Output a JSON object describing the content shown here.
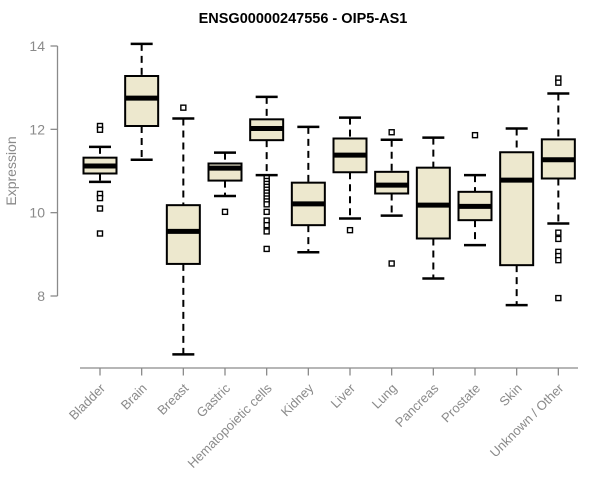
{
  "chart_data": {
    "type": "boxplot",
    "title": "ENSG00000247556 - OIP5-AS1",
    "ylabel": "Expression",
    "xlabel": "",
    "yticks": [
      8,
      10,
      12,
      14
    ],
    "axis_value_range": [
      8,
      14
    ],
    "grid": false,
    "legend": "none",
    "box_fill": "#EDE8CE",
    "box_stroke": "#000000",
    "axis_color": "#8A8A8A",
    "title_color": "#000000",
    "background": "#FFFFFF",
    "series": [
      {
        "name": "Bladder",
        "whisker_low": 10.74,
        "q1": 10.94,
        "median": 11.12,
        "q3": 11.32,
        "whisker_high": 11.58,
        "outliers": [
          12.08,
          11.99,
          10.45,
          10.35,
          10.1,
          9.5
        ]
      },
      {
        "name": "Brain",
        "whisker_low": 11.27,
        "q1": 12.08,
        "median": 12.75,
        "q3": 13.28,
        "whisker_high": 14.05,
        "outliers": []
      },
      {
        "name": "Breast",
        "whisker_low": 6.6,
        "q1": 8.77,
        "median": 9.55,
        "q3": 10.18,
        "whisker_high": 12.26,
        "outliers": [
          12.52
        ]
      },
      {
        "name": "Gastric",
        "whisker_low": 10.4,
        "q1": 10.77,
        "median": 11.07,
        "q3": 11.18,
        "whisker_high": 11.44,
        "outliers": [
          10.02
        ]
      },
      {
        "name": "Hematopoietic cells",
        "whisker_low": 10.9,
        "q1": 11.74,
        "median": 12.02,
        "q3": 12.24,
        "whisker_high": 12.78,
        "outliers": [
          10.83,
          10.76,
          10.69,
          10.62,
          10.55,
          10.48,
          10.41,
          10.34,
          10.27,
          10.2,
          10.02,
          9.81,
          9.7,
          9.55,
          9.13
        ]
      },
      {
        "name": "Kidney",
        "whisker_low": 9.05,
        "q1": 9.7,
        "median": 10.21,
        "q3": 10.72,
        "whisker_high": 12.06,
        "outliers": []
      },
      {
        "name": "Liver",
        "whisker_low": 9.86,
        "q1": 10.97,
        "median": 11.38,
        "q3": 11.78,
        "whisker_high": 12.28,
        "outliers": [
          9.58
        ]
      },
      {
        "name": "Lung",
        "whisker_low": 9.93,
        "q1": 10.46,
        "median": 10.66,
        "q3": 10.98,
        "whisker_high": 11.75,
        "outliers": [
          11.93,
          8.78
        ]
      },
      {
        "name": "Pancreas",
        "whisker_low": 8.42,
        "q1": 9.38,
        "median": 10.18,
        "q3": 11.08,
        "whisker_high": 11.8,
        "outliers": []
      },
      {
        "name": "Prostate",
        "whisker_low": 9.22,
        "q1": 9.82,
        "median": 10.15,
        "q3": 10.5,
        "whisker_high": 10.9,
        "outliers": [
          11.86
        ]
      },
      {
        "name": "Skin",
        "whisker_low": 7.78,
        "q1": 8.74,
        "median": 10.78,
        "q3": 11.45,
        "whisker_high": 12.02,
        "outliers": []
      },
      {
        "name": "Unknown / Other",
        "whisker_low": 9.74,
        "q1": 10.82,
        "median": 11.27,
        "q3": 11.76,
        "whisker_high": 12.86,
        "outliers": [
          13.22,
          13.12,
          9.52,
          9.37,
          9.06,
          8.96,
          8.86,
          7.95
        ]
      }
    ]
  }
}
